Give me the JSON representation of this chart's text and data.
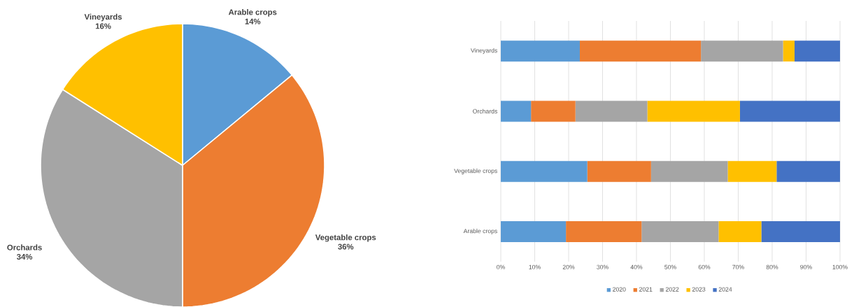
{
  "chart_data": [
    {
      "type": "pie",
      "categories": [
        "Arable crops",
        "Vegetable crops",
        "Orchards",
        "Vineyards"
      ],
      "values": [
        14,
        36,
        34,
        16
      ],
      "colors": [
        "#5b9bd5",
        "#ed7d31",
        "#a5a5a5",
        "#ffc000"
      ],
      "value_labels": [
        "14%",
        "36%",
        "34%",
        "16%"
      ]
    },
    {
      "type": "bar",
      "orientation": "horizontal",
      "stacked": true,
      "categories": [
        "Vineyards",
        "Orchards",
        "Vegetable crops",
        "Arable crops"
      ],
      "series": [
        {
          "name": "2020",
          "color": "#5b9bd5",
          "values": [
            23.3,
            8.9,
            25.5,
            19.2
          ]
        },
        {
          "name": "2021",
          "color": "#ed7d31",
          "values": [
            35.7,
            13.1,
            18.8,
            22.3
          ]
        },
        {
          "name": "2022",
          "color": "#a5a5a5",
          "values": [
            24.2,
            21.2,
            22.6,
            22.7
          ]
        },
        {
          "name": "2023",
          "color": "#ffc000",
          "values": [
            3.4,
            27.3,
            14.4,
            12.6
          ]
        },
        {
          "name": "2024",
          "color": "#4472c4",
          "values": [
            13.4,
            29.5,
            18.7,
            23.2
          ]
        }
      ],
      "xlim": [
        0,
        100
      ],
      "xticks": [
        {
          "value": 0,
          "label": "0%"
        },
        {
          "value": 10,
          "label": "10%"
        },
        {
          "value": 20,
          "label": "20%"
        },
        {
          "value": 30,
          "label": "30%"
        },
        {
          "value": 40,
          "label": "40%"
        },
        {
          "value": 50,
          "label": "50%"
        },
        {
          "value": 60,
          "label": "60%"
        },
        {
          "value": 70,
          "label": "70%"
        },
        {
          "value": 80,
          "label": "80%"
        },
        {
          "value": 90,
          "label": "90%"
        },
        {
          "value": 100,
          "label": "100%"
        }
      ],
      "grid": "x",
      "legend": "bottom"
    }
  ]
}
